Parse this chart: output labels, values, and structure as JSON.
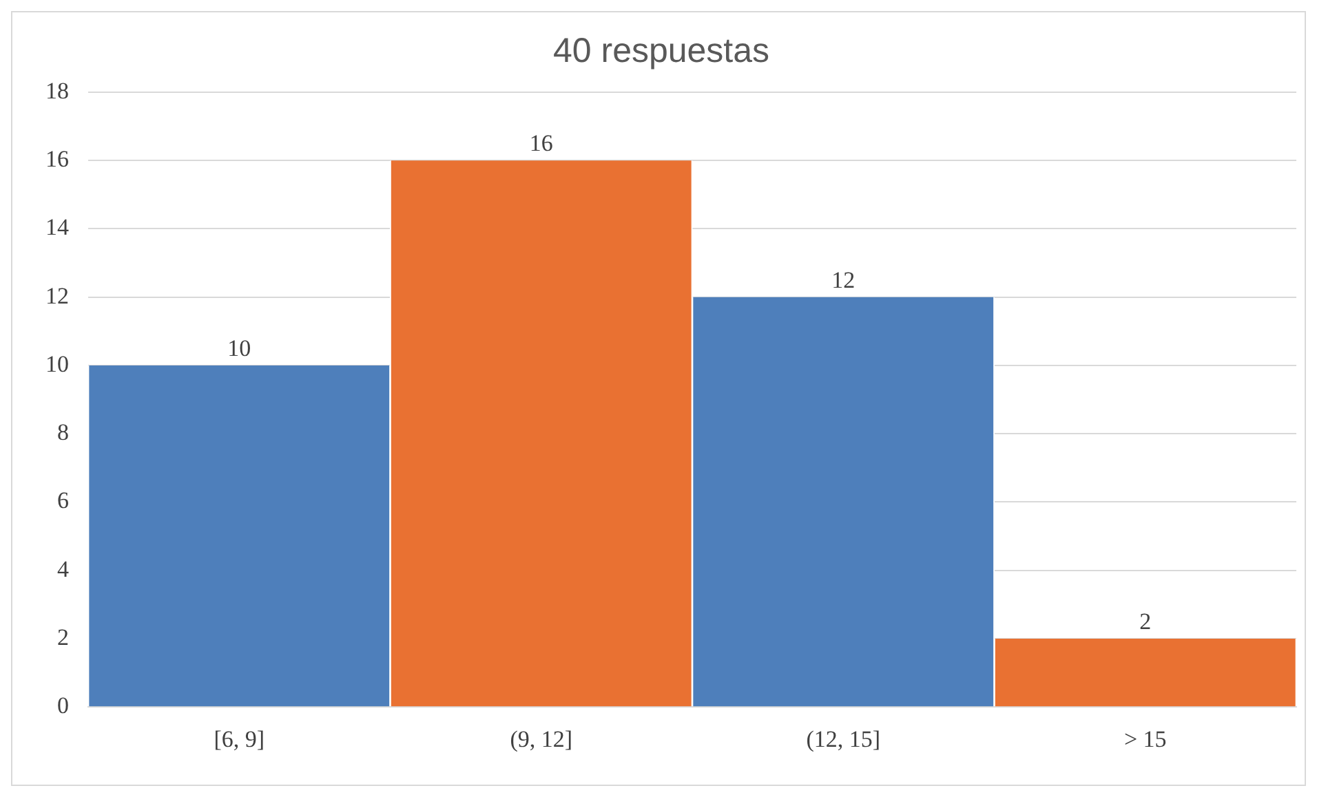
{
  "chart_data": {
    "type": "bar",
    "title": "40 respuestas",
    "categories": [
      "[6, 9]",
      "(9, 12]",
      "(12, 15]",
      "> 15"
    ],
    "values": [
      10,
      16,
      12,
      2
    ],
    "colors": [
      "#4e7fbb",
      "#e97132",
      "#4e7fbb",
      "#e97132"
    ],
    "ylim": [
      0,
      18
    ],
    "yticks": [
      0,
      2,
      4,
      6,
      8,
      10,
      12,
      14,
      16,
      18
    ],
    "grid": "y",
    "data_labels": true
  }
}
